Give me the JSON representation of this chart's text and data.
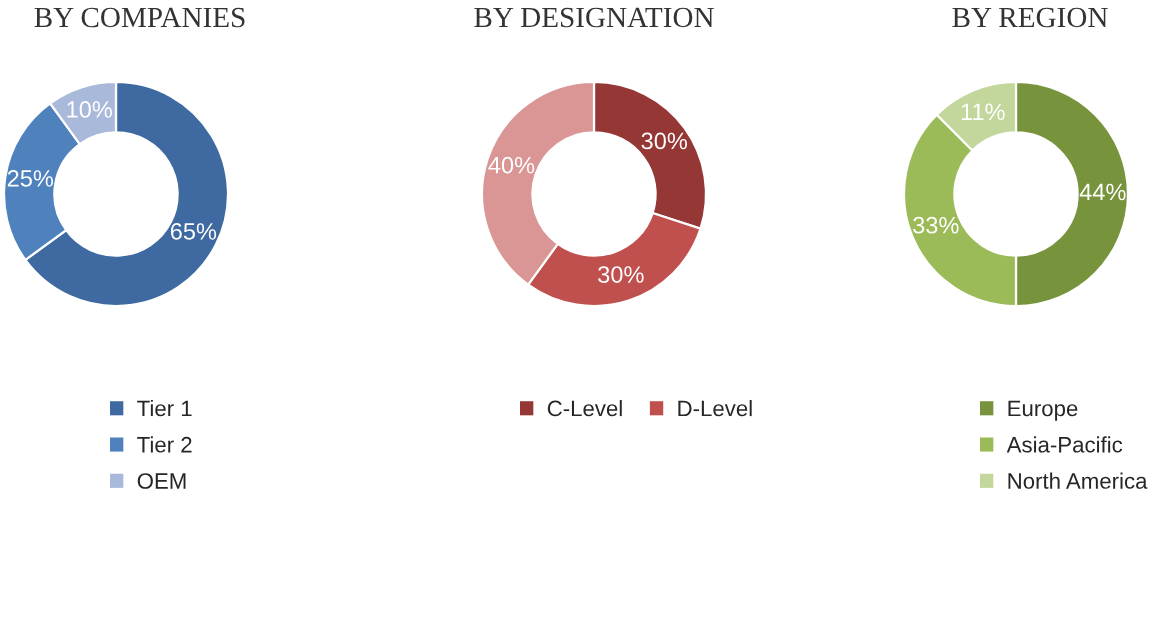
{
  "chart_data": [
    {
      "type": "donut",
      "title": "BY COMPANIES",
      "categories": [
        "Tier 1",
        "Tier 2",
        "OEM"
      ],
      "values": [
        65,
        25,
        10
      ],
      "colors": [
        "#3f6aa1",
        "#4f81bd",
        "#a9b9d9"
      ],
      "value_labels": [
        "65%",
        "25%",
        "10%"
      ],
      "legend": "bottom"
    },
    {
      "type": "donut",
      "title": "BY DESIGNATION",
      "categories": [
        "C-Level",
        "D-Level",
        null
      ],
      "values": [
        30,
        30,
        40
      ],
      "colors": [
        "#953735",
        "#c0504d",
        "#d99694"
      ],
      "value_labels": [
        "30%",
        "30%",
        "40%"
      ],
      "legend": "bottom"
    },
    {
      "type": "donut",
      "title": "BY REGION",
      "categories": [
        "Europe",
        "Asia-Pacific",
        "North America"
      ],
      "values": [
        44,
        33,
        11
      ],
      "colors": [
        "#77933c",
        "#9bbb59",
        "#c3d69b"
      ],
      "value_labels": [
        "44%",
        "33%",
        "11%"
      ],
      "legend": "bottom"
    }
  ]
}
